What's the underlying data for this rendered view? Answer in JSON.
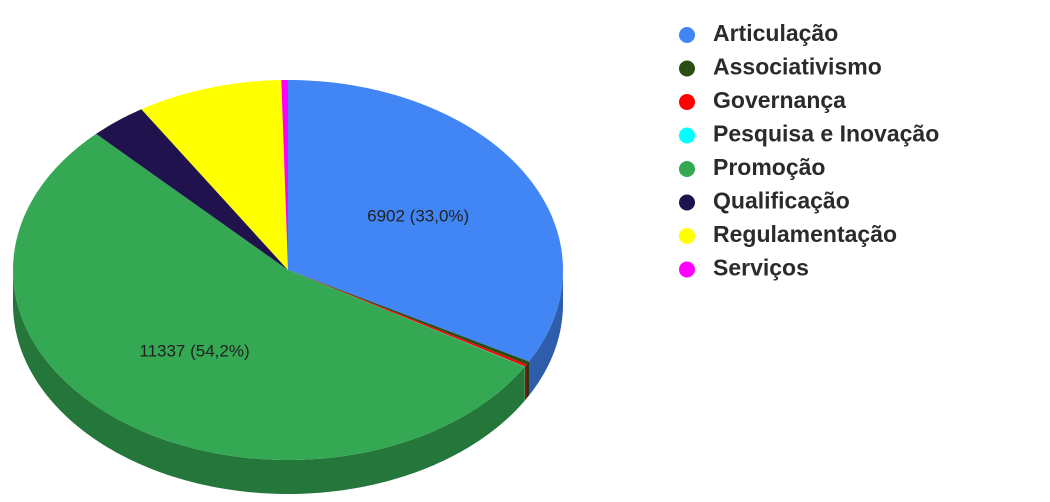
{
  "chart_data": {
    "type": "pie",
    "categories": [
      "Articulação",
      "Associativismo",
      "Governança",
      "Pesquisa e Inovação",
      "Promoção",
      "Qualificação",
      "Regulamentação",
      "Serviços"
    ],
    "values": [
      6902,
      60,
      40,
      5,
      11337,
      700,
      1790,
      81
    ],
    "value_labels": [
      "6902 (33,0%)",
      null,
      null,
      null,
      "11337 (54,2%)",
      null,
      null,
      null
    ],
    "colors": [
      "#4285f4",
      "#274e13",
      "#ff0000",
      "#00ffff",
      "#34a853",
      "#20124d",
      "#ffff00",
      "#ff00ff"
    ],
    "legend": "right"
  }
}
